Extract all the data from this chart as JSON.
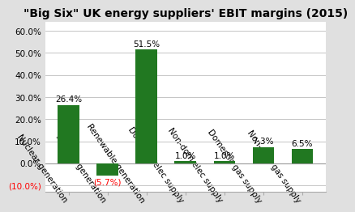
{
  "title": "\"Big Six\" UK energy suppliers' EBIT margins (2015)",
  "categories": [
    "Nuclear generation",
    "Thermal generation",
    "Renewable generation",
    "Domestic elec supply",
    "Non-dom elec supply",
    "Domestic gas supply",
    "Non-dom gas supply"
  ],
  "values": [
    26.4,
    -5.7,
    51.5,
    1.0,
    1.0,
    7.3,
    6.5
  ],
  "bar_color": "#217821",
  "ylim_min": -13,
  "ylim_max": 64,
  "yticks": [
    -10,
    0,
    10,
    20,
    30,
    40,
    50,
    60
  ],
  "ytick_labels": [
    "(10.0%)",
    "0.0%",
    "10.0%",
    "20.0%",
    "30.0%",
    "40.0%",
    "50.0%",
    "60.0%"
  ],
  "background_color": "#e0e0e0",
  "plot_bg_color": "#ffffff",
  "label_color_positive": "#000000",
  "label_color_negative": "#ff0000",
  "title_fontsize": 10,
  "tick_label_fontsize": 7.5,
  "bar_label_fontsize": 7.5,
  "xlabel_rotation": -55
}
